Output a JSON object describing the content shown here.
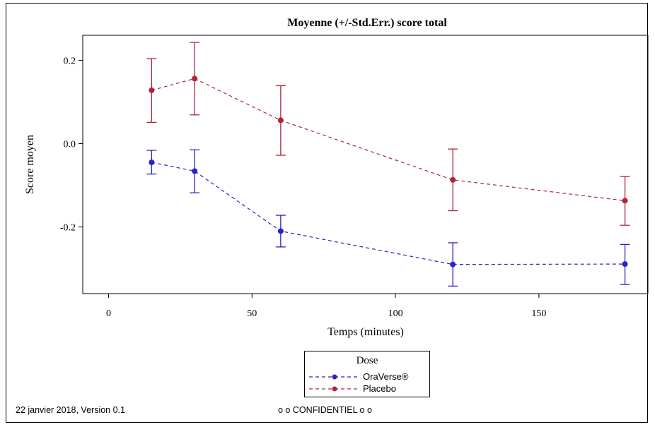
{
  "chart_data": {
    "type": "line",
    "title": "Moyenne (+/-Std.Err.) score total",
    "xlabel": "Temps (minutes)",
    "ylabel": "Score moyen",
    "xlim": [
      -9,
      188
    ],
    "ylim": [
      -0.36,
      0.26
    ],
    "xticks": [
      0,
      50,
      100,
      150
    ],
    "xtick_labels": [
      "0",
      "50",
      "100",
      "150"
    ],
    "yticks": [
      0.2,
      0.0,
      -0.2
    ],
    "ytick_labels": [
      "0.2",
      "0.0",
      "-0.2"
    ],
    "grid": false,
    "legend_title": "Dose",
    "legend_position": "bottom-center",
    "series": [
      {
        "name": "OraVerse®",
        "color": "#2a22c8",
        "linestyle": "dashed",
        "x": [
          15,
          30,
          60,
          120,
          180
        ],
        "y": [
          -0.045,
          -0.066,
          -0.21,
          -0.29,
          -0.289
        ],
        "err_low": [
          -0.073,
          -0.118,
          -0.248,
          -0.342,
          -0.338
        ],
        "err_high": [
          -0.016,
          -0.015,
          -0.172,
          -0.238,
          -0.242
        ]
      },
      {
        "name": "Placebo",
        "color": "#b0243a",
        "linestyle": "dashed",
        "x": [
          15,
          30,
          60,
          120,
          180
        ],
        "y": [
          0.128,
          0.156,
          0.056,
          -0.087,
          -0.137
        ],
        "err_low": [
          0.051,
          0.069,
          -0.028,
          -0.161,
          -0.196
        ],
        "err_high": [
          0.204,
          0.243,
          0.139,
          -0.013,
          -0.079
        ]
      }
    ]
  },
  "footer": {
    "left_text": "22 janvier 2018,  Version 0.1",
    "center_text": "o o CONFIDENTIEL o o"
  }
}
